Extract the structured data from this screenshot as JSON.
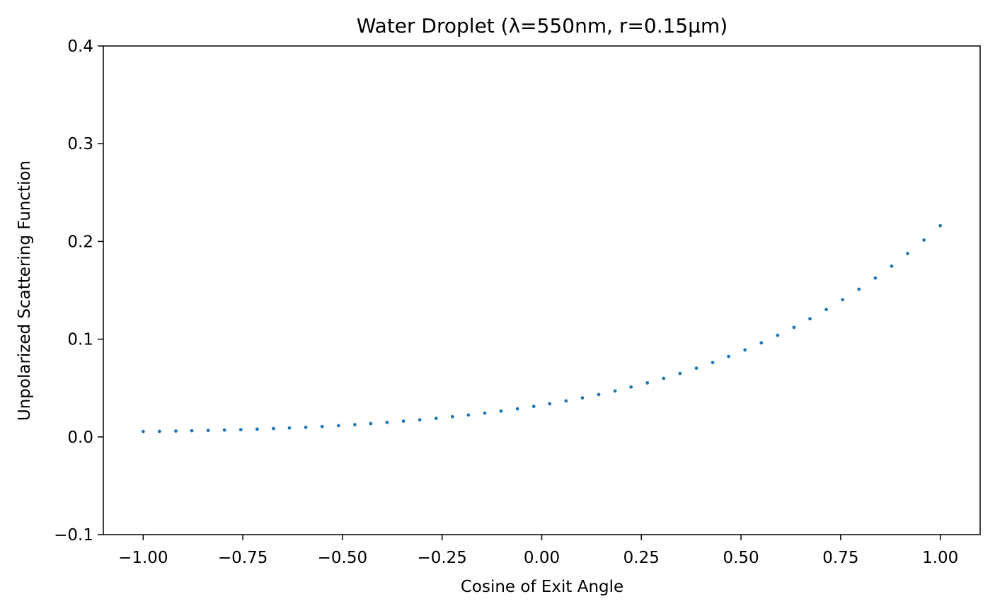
{
  "chart_data": {
    "type": "scatter",
    "title": "Water Droplet (λ=550nm, r=0.15μm)",
    "xlabel": "Cosine of Exit Angle",
    "ylabel": "Unpolarized Scattering Function",
    "xlim": [
      -1.1,
      1.1
    ],
    "ylim": [
      -0.1,
      0.4
    ],
    "xticks": [
      -1.0,
      -0.75,
      -0.5,
      -0.25,
      0.0,
      0.25,
      0.5,
      0.75,
      1.0
    ],
    "xtick_labels": [
      "−1.00",
      "−0.75",
      "−0.50",
      "−0.25",
      "0.00",
      "0.25",
      "0.50",
      "0.75",
      "1.00"
    ],
    "yticks": [
      -0.1,
      0.0,
      0.1,
      0.2,
      0.3,
      0.4
    ],
    "ytick_labels": [
      "−0.1",
      "0.0",
      "0.1",
      "0.2",
      "0.3",
      "0.4"
    ],
    "grid": false,
    "series": [
      {
        "color": "#1f77b4",
        "x": [
          -1.0,
          -0.959,
          -0.918,
          -0.878,
          -0.837,
          -0.796,
          -0.755,
          -0.714,
          -0.673,
          -0.633,
          -0.592,
          -0.551,
          -0.51,
          -0.469,
          -0.429,
          -0.388,
          -0.347,
          -0.306,
          -0.265,
          -0.224,
          -0.184,
          -0.143,
          -0.102,
          -0.061,
          -0.02,
          0.02,
          0.061,
          0.102,
          0.143,
          0.184,
          0.224,
          0.265,
          0.306,
          0.347,
          0.388,
          0.429,
          0.469,
          0.51,
          0.551,
          0.592,
          0.633,
          0.673,
          0.714,
          0.755,
          0.796,
          0.837,
          0.878,
          0.918,
          0.959,
          1.0
        ],
        "y": [
          0.0055,
          0.0057,
          0.006,
          0.0063,
          0.0066,
          0.007,
          0.0074,
          0.0079,
          0.0085,
          0.0091,
          0.0098,
          0.0106,
          0.0115,
          0.0125,
          0.0136,
          0.0148,
          0.0161,
          0.0175,
          0.019,
          0.0206,
          0.0224,
          0.0243,
          0.0264,
          0.0287,
          0.0312,
          0.0339,
          0.0368,
          0.0399,
          0.0433,
          0.047,
          0.051,
          0.0553,
          0.0599,
          0.0649,
          0.0703,
          0.0761,
          0.0823,
          0.089,
          0.0962,
          0.1039,
          0.1121,
          0.1209,
          0.1303,
          0.1404,
          0.1511,
          0.1625,
          0.1747,
          0.1876,
          0.2014,
          0.2161
        ]
      }
    ]
  }
}
